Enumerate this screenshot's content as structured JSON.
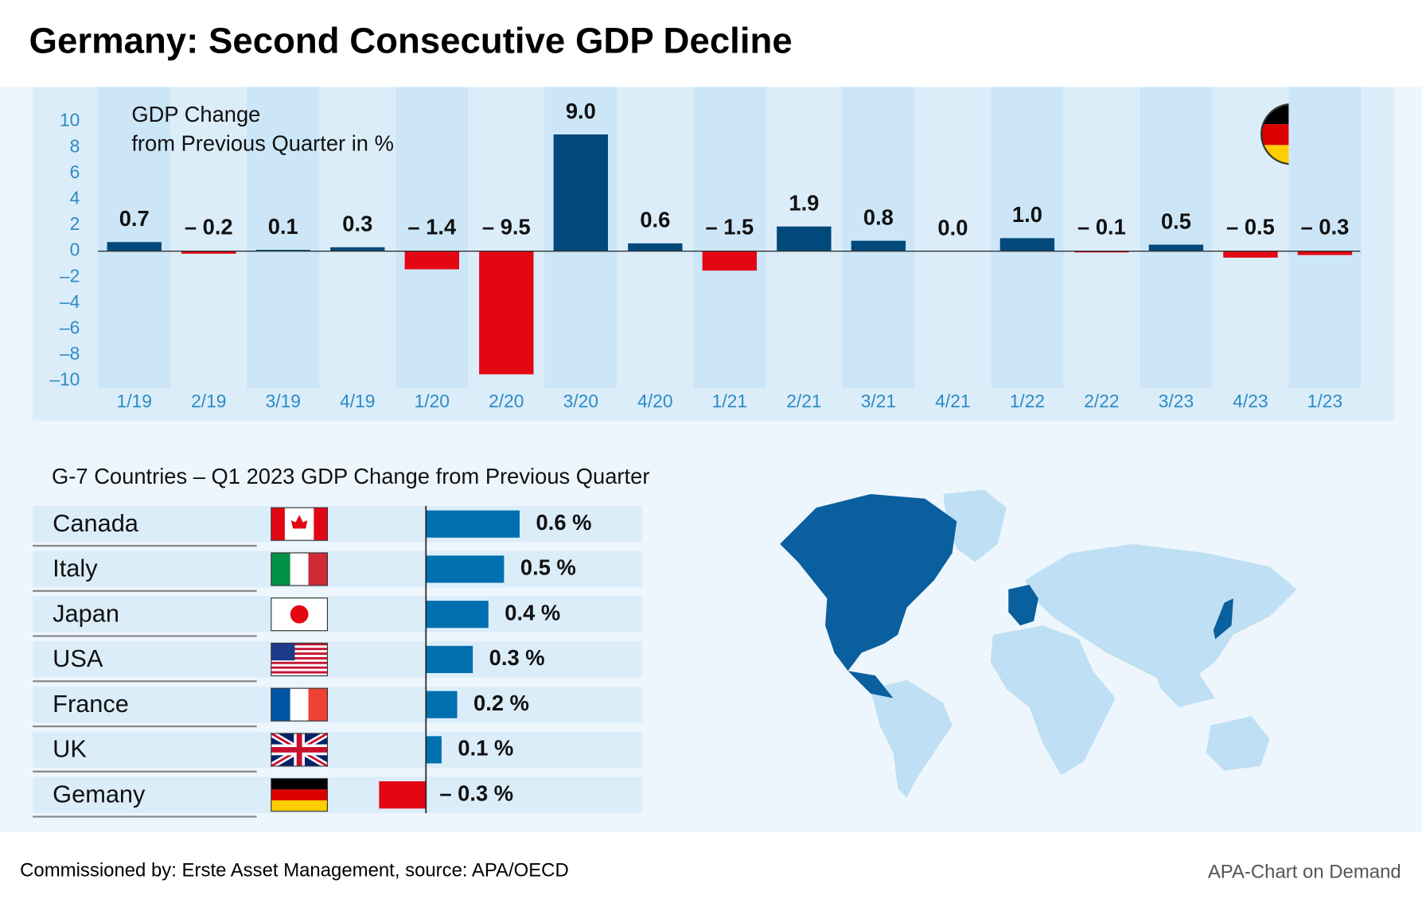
{
  "header": {
    "title": "Germany: Second Consecutive GDP Decline"
  },
  "footer": {
    "source": "Commissioned by: Erste Asset Management, source: APA/OECD",
    "credit": "APA-Chart on Demand"
  },
  "chart_data": [
    {
      "type": "bar",
      "annotation": [
        "GDP Change",
        "from Previous Quarter in %"
      ],
      "categories": [
        "1/19",
        "2/19",
        "3/19",
        "4/19",
        "1/20",
        "2/20",
        "3/20",
        "4/20",
        "1/21",
        "2/21",
        "3/21",
        "4/21",
        "1/22",
        "2/22",
        "3/23",
        "4/23",
        "1/23"
      ],
      "values": [
        0.7,
        -0.2,
        0.1,
        0.3,
        -1.4,
        -9.5,
        9.0,
        0.6,
        -1.5,
        1.9,
        0.8,
        0.0,
        1.0,
        -0.1,
        0.5,
        -0.5,
        -0.3
      ],
      "value_labels": [
        "0.7",
        "– 0.2",
        "0.1",
        "0.3",
        "– 1.4",
        "– 9.5",
        "9.0",
        "0.6",
        "– 1.5",
        "1.9",
        "0.8",
        "0.0",
        "1.0",
        "– 0.1",
        "0.5",
        "– 0.5",
        "– 0.3"
      ],
      "color": "#00497a",
      "negative_color": "#e30613",
      "ylim": [
        -10,
        10
      ],
      "yticks": [
        10,
        8,
        6,
        4,
        2,
        0,
        {
          "value": -2,
          "label": "–2"
        },
        {
          "value": -4,
          "label": "–4"
        },
        {
          "value": -6,
          "label": "–6"
        },
        {
          "value": -8,
          "label": "–8"
        },
        {
          "value": -10,
          "label": "–10"
        }
      ]
    },
    {
      "type": "hbar",
      "title": "G-7 Countries – Q1 2023 GDP Change from Previous Quarter",
      "categories": [
        "Canada",
        "Italy",
        "Japan",
        "USA",
        "France",
        "UK",
        "Gemany"
      ],
      "values": [
        0.6,
        0.5,
        0.4,
        0.3,
        0.2,
        0.1,
        -0.3
      ],
      "value_labels": [
        "0.6 %",
        "0.5 %",
        "0.4 %",
        "0.3 %",
        "0.2 %",
        "0.1 %",
        "– 0.3 %"
      ],
      "color": "#0070b0",
      "negative_color": "#e30613",
      "xlim": [
        -0.3,
        0.6
      ]
    }
  ]
}
